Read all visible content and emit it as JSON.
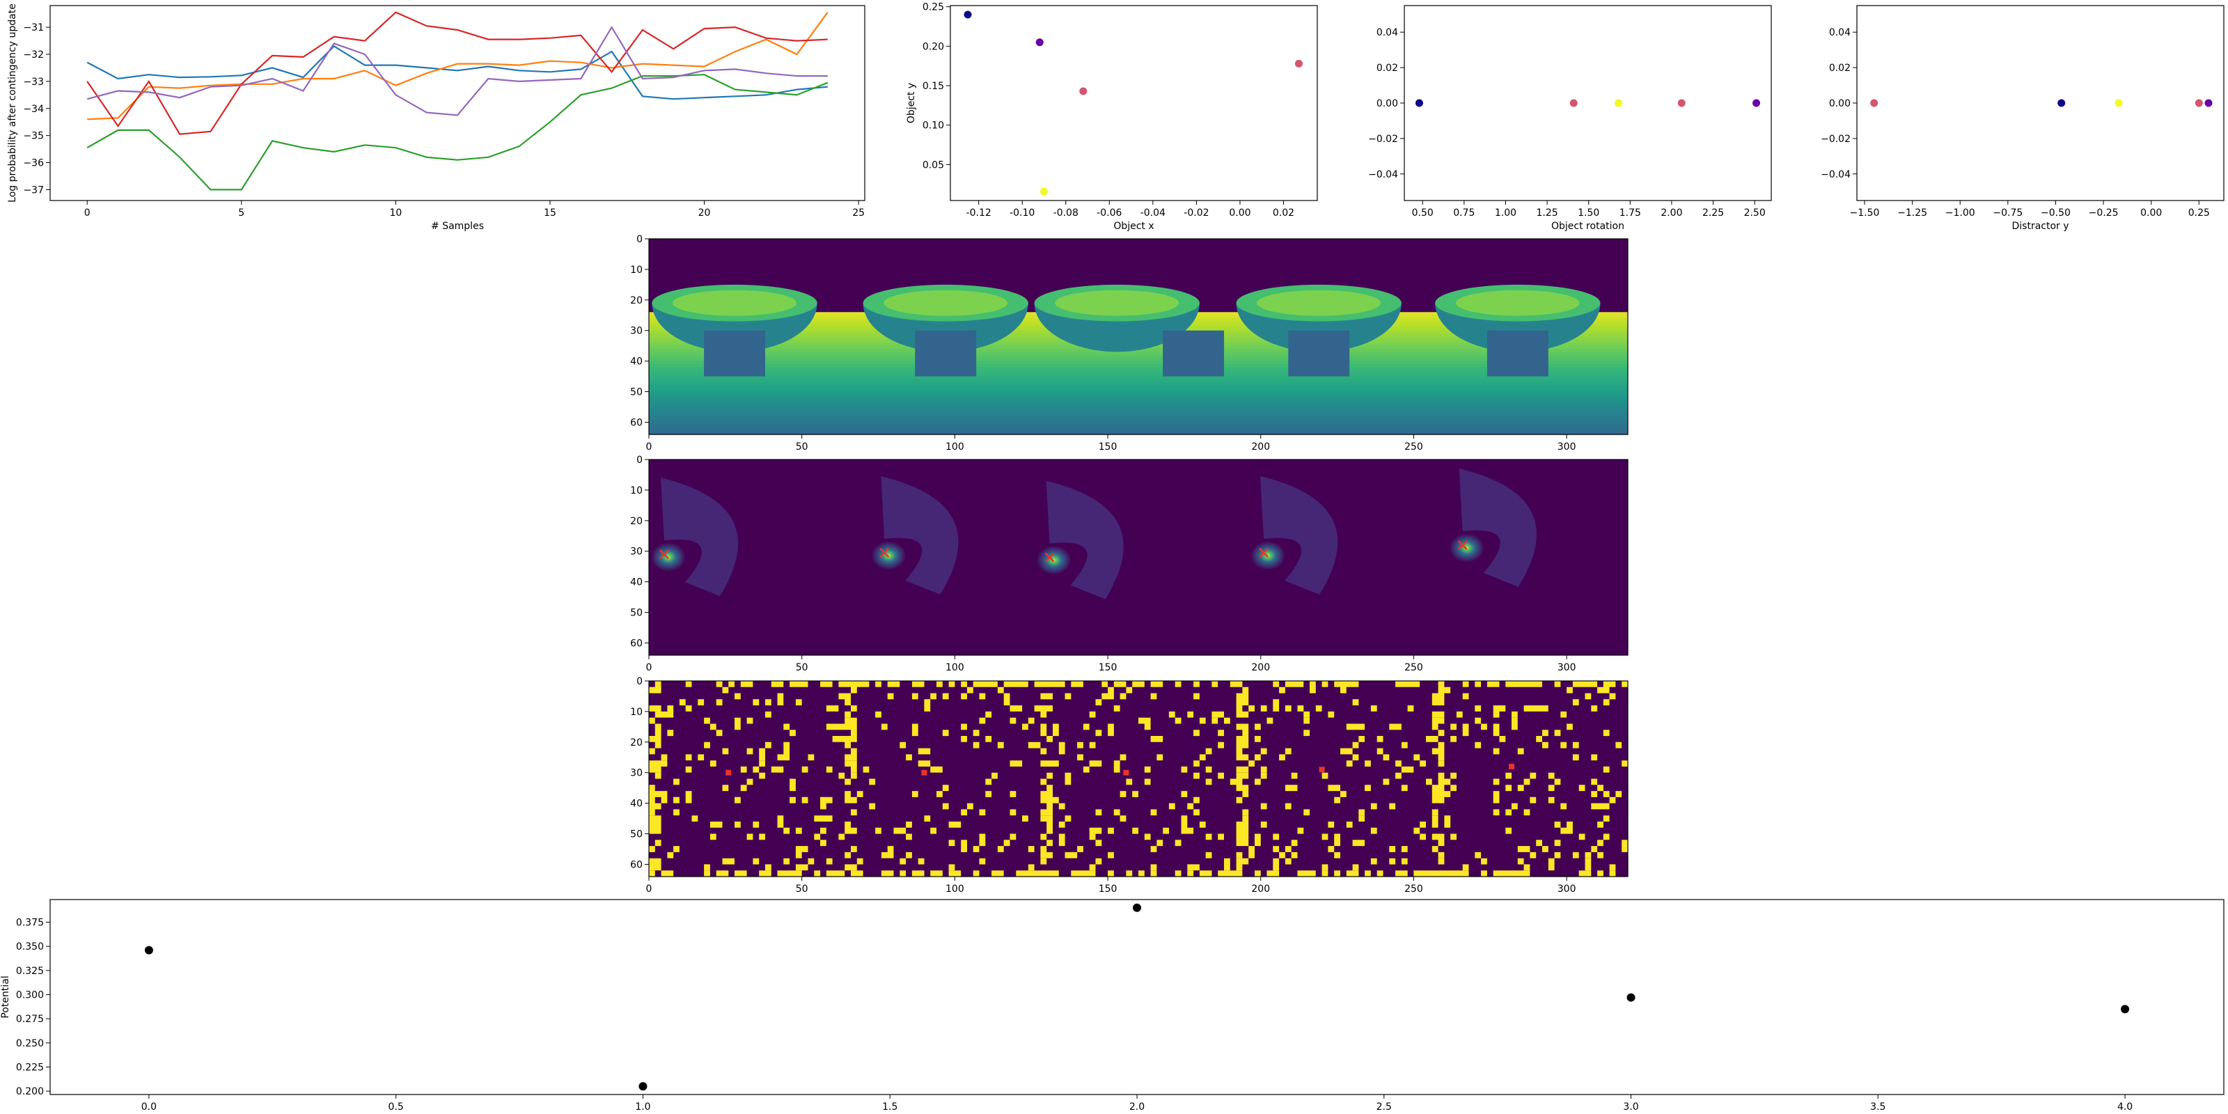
{
  "chart_data": [
    {
      "id": "log_prob",
      "type": "line",
      "xlabel": "# Samples",
      "ylabel": "Log probability after contingency update",
      "xlim": [
        -1.2,
        25.2
      ],
      "ylim": [
        -37.4,
        -30.2
      ],
      "xticks": [
        0,
        5,
        10,
        15,
        20,
        25
      ],
      "yticks": [
        -37,
        -36,
        -35,
        -34,
        -33,
        -32,
        -31
      ],
      "x": [
        0,
        1,
        2,
        3,
        4,
        5,
        6,
        7,
        8,
        9,
        10,
        11,
        12,
        13,
        14,
        15,
        16,
        17,
        18,
        19,
        20,
        21,
        22,
        23,
        24
      ],
      "series": [
        {
          "color": "#1f77b4",
          "values": [
            -32.3,
            -32.9,
            -32.75,
            -32.85,
            -32.83,
            -32.78,
            -32.5,
            -32.85,
            -31.7,
            -32.4,
            -32.4,
            -32.5,
            -32.6,
            -32.45,
            -32.6,
            -32.65,
            -32.55,
            -31.9,
            -33.55,
            -33.65,
            -33.6,
            -33.55,
            -33.5,
            -33.3,
            -33.2
          ]
        },
        {
          "color": "#ff7f0e",
          "values": [
            -34.4,
            -34.35,
            -33.2,
            -33.25,
            -33.15,
            -33.1,
            -33.1,
            -32.9,
            -32.9,
            -32.6,
            -33.15,
            -32.7,
            -32.35,
            -32.35,
            -32.4,
            -32.25,
            -32.3,
            -32.5,
            -32.35,
            -32.4,
            -32.45,
            -31.9,
            -31.45,
            -32.0,
            -30.45
          ]
        },
        {
          "color": "#2ca02c",
          "values": [
            -35.45,
            -34.8,
            -34.8,
            -35.8,
            -37.0,
            -37.0,
            -35.2,
            -35.45,
            -35.6,
            -35.35,
            -35.45,
            -35.8,
            -35.9,
            -35.8,
            -35.4,
            -34.5,
            -33.5,
            -33.25,
            -32.8,
            -32.8,
            -32.75,
            -33.3,
            -33.4,
            -33.5,
            -33.05
          ]
        },
        {
          "color": "#d62728",
          "values": [
            -33.0,
            -34.65,
            -33.0,
            -34.95,
            -34.85,
            -33.1,
            -32.05,
            -32.1,
            -31.35,
            -31.5,
            -30.45,
            -30.95,
            -31.1,
            -31.45,
            -31.45,
            -31.4,
            -31.3,
            -32.65,
            -31.1,
            -31.8,
            -31.05,
            -31.0,
            -31.4,
            -31.5,
            -31.45
          ]
        },
        {
          "color": "#9467bd",
          "values": [
            -33.65,
            -33.35,
            -33.4,
            -33.6,
            -33.2,
            -33.15,
            -32.9,
            -33.35,
            -31.6,
            -32.0,
            -33.5,
            -34.15,
            -34.25,
            -32.9,
            -33.0,
            -32.95,
            -32.9,
            -31.0,
            -32.9,
            -32.85,
            -32.6,
            -32.55,
            -32.7,
            -32.8,
            -32.8
          ]
        }
      ]
    },
    {
      "id": "object_xy",
      "type": "scatter",
      "xlabel": "Object x",
      "ylabel": "Object y",
      "xlim": [
        -0.133,
        0.0355
      ],
      "ylim": [
        0.0045,
        0.2515
      ],
      "xticks": [
        "-0.12",
        "-0.10",
        "-0.08",
        "-0.06",
        "-0.04",
        "-0.02",
        "0.00",
        "0.02"
      ],
      "xtick_values": [
        -0.12,
        -0.1,
        -0.08,
        -0.06,
        -0.04,
        -0.02,
        0.0,
        0.02
      ],
      "yticks": [
        "0.05",
        "0.10",
        "0.15",
        "0.20",
        "0.25"
      ],
      "ytick_values": [
        0.05,
        0.1,
        0.15,
        0.2,
        0.25
      ],
      "points": [
        {
          "x": -0.125,
          "y": 0.24,
          "color": "#0d0887"
        },
        {
          "x": -0.092,
          "y": 0.205,
          "color": "#6a00a8"
        },
        {
          "x": -0.072,
          "y": 0.143,
          "color": "#d5546e"
        },
        {
          "x": 0.027,
          "y": 0.178,
          "color": "#d5546e"
        },
        {
          "x": -0.09,
          "y": 0.016,
          "color": "#f0f921"
        }
      ]
    },
    {
      "id": "object_rotation",
      "type": "scatter",
      "xlabel": "Object rotation",
      "ylabel": "",
      "xlim": [
        0.39,
        2.6
      ],
      "ylim": [
        -0.055,
        0.055
      ],
      "xticks": [
        "0.50",
        "0.75",
        "1.00",
        "1.25",
        "1.50",
        "1.75",
        "2.00",
        "2.25",
        "2.50"
      ],
      "xtick_values": [
        0.5,
        0.75,
        1.0,
        1.25,
        1.5,
        1.75,
        2.0,
        2.25,
        2.5
      ],
      "yticks": [
        "−0.04",
        "−0.02",
        "0.00",
        "0.02",
        "0.04"
      ],
      "ytick_values": [
        -0.04,
        -0.02,
        0.0,
        0.02,
        0.04
      ],
      "points": [
        {
          "x": 0.48,
          "y": 0,
          "color": "#0d0887"
        },
        {
          "x": 1.41,
          "y": 0,
          "color": "#d5546e"
        },
        {
          "x": 1.68,
          "y": 0,
          "color": "#f0f921"
        },
        {
          "x": 2.06,
          "y": 0,
          "color": "#d5546e"
        },
        {
          "x": 2.51,
          "y": 0,
          "color": "#6a00a8"
        }
      ]
    },
    {
      "id": "distractor_y",
      "type": "scatter",
      "xlabel": "Distractor y",
      "ylabel": "",
      "xlim": [
        -1.54,
        0.38
      ],
      "ylim": [
        -0.055,
        0.055
      ],
      "xticks": [
        "−1.50",
        "−1.25",
        "−1.00",
        "−0.75",
        "−0.50",
        "−0.25",
        "0.00",
        "0.25"
      ],
      "xtick_values": [
        -1.5,
        -1.25,
        -1.0,
        -0.75,
        -0.5,
        -0.25,
        0.0,
        0.25
      ],
      "yticks": [
        "−0.04",
        "−0.02",
        "0.00",
        "0.02",
        "0.04"
      ],
      "ytick_values": [
        -0.04,
        -0.02,
        0.0,
        0.02,
        0.04
      ],
      "points": [
        {
          "x": -1.45,
          "y": 0,
          "color": "#d5546e"
        },
        {
          "x": -0.47,
          "y": 0,
          "color": "#0d0887"
        },
        {
          "x": -0.17,
          "y": 0,
          "color": "#f0f921"
        },
        {
          "x": 0.25,
          "y": 0,
          "color": "#d5546e"
        },
        {
          "x": 0.3,
          "y": 0,
          "color": "#6a00a8"
        }
      ]
    },
    {
      "id": "depth_image",
      "type": "heatmap",
      "xlim": [
        0,
        320
      ],
      "ylim": [
        64,
        0
      ],
      "xticks": [
        0,
        50,
        100,
        150,
        200,
        250,
        300
      ],
      "yticks": [
        0,
        10,
        20,
        30,
        40,
        50,
        60
      ],
      "colormap": "viridis"
    },
    {
      "id": "likelihood_image",
      "type": "heatmap",
      "xlim": [
        0,
        320
      ],
      "ylim": [
        64,
        0
      ],
      "xticks": [
        0,
        50,
        100,
        150,
        200,
        250,
        300
      ],
      "yticks": [
        0,
        10,
        20,
        30,
        40,
        50,
        60
      ],
      "colormap": "viridis",
      "markers": [
        {
          "x": 5,
          "y": 31
        },
        {
          "x": 77,
          "y": 30.5
        },
        {
          "x": 131,
          "y": 32
        },
        {
          "x": 201,
          "y": 30.5
        },
        {
          "x": 266,
          "y": 28
        }
      ]
    },
    {
      "id": "mask_image",
      "type": "heatmap",
      "xlim": [
        0,
        320
      ],
      "ylim": [
        64,
        0
      ],
      "xticks": [
        0,
        50,
        100,
        150,
        200,
        250,
        300
      ],
      "yticks": [
        0,
        10,
        20,
        30,
        40,
        50,
        60
      ],
      "colormap": "viridis",
      "markers": [
        {
          "x": 26,
          "y": 30
        },
        {
          "x": 90,
          "y": 30
        },
        {
          "x": 156,
          "y": 30
        },
        {
          "x": 220,
          "y": 29
        },
        {
          "x": 282,
          "y": 28
        }
      ]
    },
    {
      "id": "potential",
      "type": "scatter",
      "xlabel": "",
      "ylabel": "Potential",
      "xlim": [
        -0.2,
        4.2
      ],
      "ylim": [
        0.1965,
        0.3985
      ],
      "xticks": [
        "0.0",
        "0.5",
        "1.0",
        "1.5",
        "2.0",
        "2.5",
        "3.0",
        "3.5",
        "4.0"
      ],
      "xtick_values": [
        0,
        0.5,
        1.0,
        1.5,
        2.0,
        2.5,
        3.0,
        3.5,
        4.0
      ],
      "yticks": [
        "0.200",
        "0.225",
        "0.250",
        "0.275",
        "0.300",
        "0.325",
        "0.350",
        "0.375"
      ],
      "ytick_values": [
        0.2,
        0.225,
        0.25,
        0.275,
        0.3,
        0.325,
        0.35,
        0.375
      ],
      "points": [
        {
          "x": 0,
          "y": 0.346,
          "color": "#000000"
        },
        {
          "x": 1,
          "y": 0.205,
          "color": "#000000"
        },
        {
          "x": 2,
          "y": 0.39,
          "color": "#000000"
        },
        {
          "x": 3,
          "y": 0.297,
          "color": "#000000"
        },
        {
          "x": 4,
          "y": 0.285,
          "color": "#000000"
        }
      ]
    }
  ]
}
